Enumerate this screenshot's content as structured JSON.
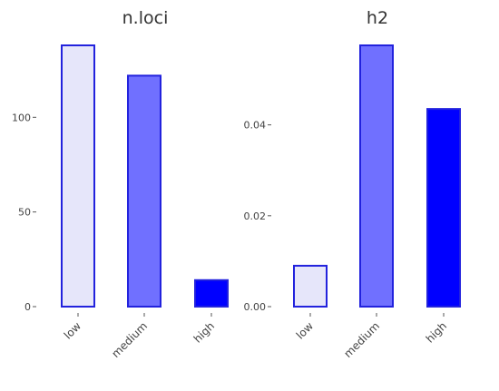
{
  "chart_data": [
    {
      "type": "bar",
      "title": "n.loci",
      "categories": [
        "low",
        "medium",
        "high"
      ],
      "values": [
        138,
        122,
        14
      ],
      "ylim": [
        0,
        138
      ],
      "yticks": [
        0,
        50,
        100
      ],
      "ytick_labels": [
        "0",
        "50",
        "100"
      ],
      "colors": [
        "#e6e6fa",
        "#7070ff",
        "#0000ff"
      ],
      "edge_color": "#2222dd",
      "grid": false,
      "legend": "none"
    },
    {
      "type": "bar",
      "title": "h2",
      "categories": [
        "low",
        "medium",
        "high"
      ],
      "values": [
        0.009,
        0.0575,
        0.0435
      ],
      "ylim": [
        0,
        0.0575
      ],
      "yticks": [
        0,
        0.02,
        0.04
      ],
      "ytick_labels": [
        "0.00",
        "0.02",
        "0.04"
      ],
      "colors": [
        "#e6e6fa",
        "#7070ff",
        "#0000ff"
      ],
      "edge_color": "#2222dd",
      "grid": false,
      "legend": "none"
    }
  ]
}
